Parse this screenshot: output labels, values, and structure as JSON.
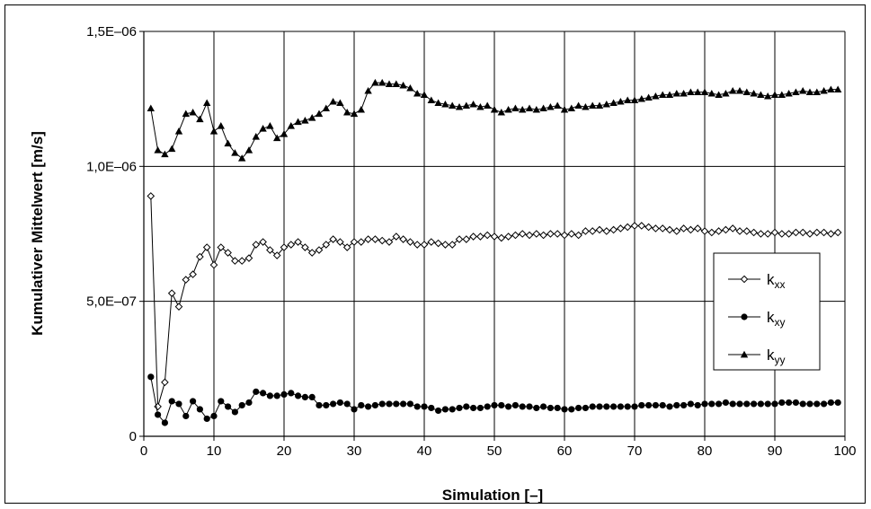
{
  "chart_data": {
    "type": "line",
    "title": "",
    "xlabel": "Simulation [–]",
    "ylabel": "Kumulativer Mittelwert [m/s]",
    "xlim": [
      0,
      100
    ],
    "ylim": [
      0,
      1.5e-06
    ],
    "x_ticks": [
      "0",
      "10",
      "20",
      "30",
      "40",
      "50",
      "60",
      "70",
      "80",
      "90",
      "100"
    ],
    "y_ticks": [
      "0",
      "5,0E–07",
      "1,0E–06",
      "1,5E–06"
    ],
    "grid": true,
    "legend_position": "right",
    "x": [
      1,
      2,
      3,
      4,
      5,
      6,
      7,
      8,
      9,
      10,
      11,
      12,
      13,
      14,
      15,
      16,
      17,
      18,
      19,
      20,
      21,
      22,
      23,
      24,
      25,
      26,
      27,
      28,
      29,
      30,
      31,
      32,
      33,
      34,
      35,
      36,
      37,
      38,
      39,
      40,
      41,
      42,
      43,
      44,
      45,
      46,
      47,
      48,
      49,
      50,
      51,
      52,
      53,
      54,
      55,
      56,
      57,
      58,
      59,
      60,
      61,
      62,
      63,
      64,
      65,
      66,
      67,
      68,
      69,
      70,
      71,
      72,
      73,
      74,
      75,
      76,
      77,
      78,
      79,
      80,
      81,
      82,
      83,
      84,
      85,
      86,
      87,
      88,
      89,
      90,
      91,
      92,
      93,
      94,
      95,
      96,
      97,
      98,
      99
    ],
    "series": [
      {
        "name": "k",
        "subscript": "xx",
        "marker": "open-diamond",
        "values": [
          8.9e-07,
          1.1e-07,
          2e-07,
          5.3e-07,
          4.8e-07,
          5.8e-07,
          6e-07,
          6.65e-07,
          7e-07,
          6.35e-07,
          7e-07,
          6.8e-07,
          6.5e-07,
          6.5e-07,
          6.6e-07,
          7.1e-07,
          7.2e-07,
          6.9e-07,
          6.7e-07,
          7e-07,
          7.1e-07,
          7.2e-07,
          7e-07,
          6.8e-07,
          6.9e-07,
          7.1e-07,
          7.3e-07,
          7.2e-07,
          7e-07,
          7.2e-07,
          7.2e-07,
          7.3e-07,
          7.3e-07,
          7.25e-07,
          7.2e-07,
          7.4e-07,
          7.3e-07,
          7.2e-07,
          7.1e-07,
          7.1e-07,
          7.2e-07,
          7.15e-07,
          7.1e-07,
          7.1e-07,
          7.3e-07,
          7.3e-07,
          7.4e-07,
          7.4e-07,
          7.45e-07,
          7.4e-07,
          7.35e-07,
          7.4e-07,
          7.45e-07,
          7.5e-07,
          7.45e-07,
          7.5e-07,
          7.45e-07,
          7.5e-07,
          7.5e-07,
          7.45e-07,
          7.5e-07,
          7.45e-07,
          7.6e-07,
          7.6e-07,
          7.65e-07,
          7.6e-07,
          7.65e-07,
          7.7e-07,
          7.75e-07,
          7.8e-07,
          7.8e-07,
          7.75e-07,
          7.7e-07,
          7.7e-07,
          7.65e-07,
          7.6e-07,
          7.7e-07,
          7.65e-07,
          7.7e-07,
          7.6e-07,
          7.55e-07,
          7.6e-07,
          7.65e-07,
          7.7e-07,
          7.6e-07,
          7.6e-07,
          7.55e-07,
          7.5e-07,
          7.5e-07,
          7.55e-07,
          7.5e-07,
          7.5e-07,
          7.55e-07,
          7.55e-07,
          7.5e-07,
          7.55e-07,
          7.55e-07,
          7.5e-07,
          7.55e-07
        ]
      },
      {
        "name": "k",
        "subscript": "xy",
        "marker": "filled-circle",
        "values": [
          2.2e-07,
          8e-08,
          5e-08,
          1.3e-07,
          1.2e-07,
          7.5e-08,
          1.3e-07,
          1e-07,
          6.5e-08,
          7.5e-08,
          1.3e-07,
          1.1e-07,
          9e-08,
          1.15e-07,
          1.25e-07,
          1.65e-07,
          1.6e-07,
          1.5e-07,
          1.5e-07,
          1.55e-07,
          1.6e-07,
          1.5e-07,
          1.45e-07,
          1.45e-07,
          1.15e-07,
          1.15e-07,
          1.2e-07,
          1.25e-07,
          1.2e-07,
          1e-07,
          1.15e-07,
          1.1e-07,
          1.15e-07,
          1.2e-07,
          1.2e-07,
          1.2e-07,
          1.2e-07,
          1.2e-07,
          1.1e-07,
          1.1e-07,
          1.05e-07,
          9.5e-08,
          1e-07,
          1e-07,
          1.05e-07,
          1.1e-07,
          1.05e-07,
          1.05e-07,
          1.1e-07,
          1.15e-07,
          1.15e-07,
          1.1e-07,
          1.15e-07,
          1.1e-07,
          1.1e-07,
          1.05e-07,
          1.1e-07,
          1.05e-07,
          1.05e-07,
          1e-07,
          1e-07,
          1.05e-07,
          1.05e-07,
          1.1e-07,
          1.1e-07,
          1.1e-07,
          1.1e-07,
          1.1e-07,
          1.1e-07,
          1.1e-07,
          1.15e-07,
          1.15e-07,
          1.15e-07,
          1.15e-07,
          1.1e-07,
          1.15e-07,
          1.15e-07,
          1.2e-07,
          1.15e-07,
          1.2e-07,
          1.2e-07,
          1.2e-07,
          1.25e-07,
          1.2e-07,
          1.2e-07,
          1.2e-07,
          1.2e-07,
          1.2e-07,
          1.2e-07,
          1.2e-07,
          1.25e-07,
          1.25e-07,
          1.25e-07,
          1.2e-07,
          1.2e-07,
          1.2e-07,
          1.2e-07,
          1.25e-07,
          1.25e-07
        ]
      },
      {
        "name": "k",
        "subscript": "yy",
        "marker": "filled-triangle",
        "values": [
          1.215e-06,
          1.06e-06,
          1.045e-06,
          1.065e-06,
          1.13e-06,
          1.195e-06,
          1.2e-06,
          1.175e-06,
          1.235e-06,
          1.13e-06,
          1.15e-06,
          1.085e-06,
          1.05e-06,
          1.03e-06,
          1.06e-06,
          1.11e-06,
          1.14e-06,
          1.15e-06,
          1.105e-06,
          1.12e-06,
          1.15e-06,
          1.165e-06,
          1.17e-06,
          1.18e-06,
          1.195e-06,
          1.215e-06,
          1.24e-06,
          1.235e-06,
          1.2e-06,
          1.195e-06,
          1.21e-06,
          1.28e-06,
          1.31e-06,
          1.31e-06,
          1.305e-06,
          1.305e-06,
          1.3e-06,
          1.29e-06,
          1.27e-06,
          1.265e-06,
          1.245e-06,
          1.235e-06,
          1.23e-06,
          1.225e-06,
          1.22e-06,
          1.225e-06,
          1.23e-06,
          1.22e-06,
          1.225e-06,
          1.21e-06,
          1.2e-06,
          1.21e-06,
          1.215e-06,
          1.21e-06,
          1.215e-06,
          1.21e-06,
          1.215e-06,
          1.22e-06,
          1.225e-06,
          1.21e-06,
          1.215e-06,
          1.225e-06,
          1.22e-06,
          1.225e-06,
          1.225e-06,
          1.23e-06,
          1.235e-06,
          1.24e-06,
          1.245e-06,
          1.245e-06,
          1.25e-06,
          1.255e-06,
          1.26e-06,
          1.265e-06,
          1.265e-06,
          1.27e-06,
          1.27e-06,
          1.275e-06,
          1.275e-06,
          1.275e-06,
          1.27e-06,
          1.265e-06,
          1.27e-06,
          1.28e-06,
          1.28e-06,
          1.275e-06,
          1.27e-06,
          1.265e-06,
          1.26e-06,
          1.265e-06,
          1.265e-06,
          1.27e-06,
          1.275e-06,
          1.28e-06,
          1.275e-06,
          1.275e-06,
          1.28e-06,
          1.285e-06,
          1.285e-06
        ]
      }
    ]
  }
}
